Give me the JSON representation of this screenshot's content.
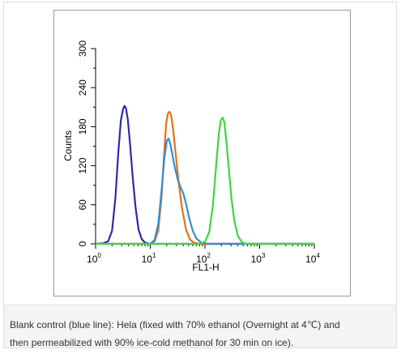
{
  "chart_data": {
    "type": "line",
    "title": "",
    "xlabel": "FL1-H",
    "ylabel": "Counts",
    "x_scale": "log",
    "xlim": [
      1,
      10000
    ],
    "ylim": [
      0,
      300
    ],
    "x_ticks": [
      {
        "base": "10",
        "exp": "0",
        "value": 1
      },
      {
        "base": "10",
        "exp": "1",
        "value": 10
      },
      {
        "base": "10",
        "exp": "2",
        "value": 100
      },
      {
        "base": "10",
        "exp": "3",
        "value": 1000
      },
      {
        "base": "10",
        "exp": "4",
        "value": 10000
      }
    ],
    "y_ticks": [
      "0",
      "60",
      "120",
      "180",
      "240",
      "300"
    ],
    "grid": false,
    "series": [
      {
        "color": "#2b2bb0",
        "points": [
          [
            1.0,
            0
          ],
          [
            1.4,
            1
          ],
          [
            1.7,
            4
          ],
          [
            2.0,
            20
          ],
          [
            2.3,
            70
          ],
          [
            2.6,
            140
          ],
          [
            2.9,
            190
          ],
          [
            3.2,
            208
          ],
          [
            3.4,
            212
          ],
          [
            3.6,
            208
          ],
          [
            3.9,
            190
          ],
          [
            4.3,
            150
          ],
          [
            4.8,
            100
          ],
          [
            5.4,
            55
          ],
          [
            6.1,
            22
          ],
          [
            7.0,
            7
          ],
          [
            8.0,
            2
          ],
          [
            9.5,
            0
          ],
          [
            20,
            0
          ],
          [
            100,
            0
          ],
          [
            1000,
            0
          ],
          [
            10000,
            0
          ]
        ]
      },
      {
        "color": "#e8701a",
        "points": [
          [
            1.0,
            0
          ],
          [
            10,
            0
          ],
          [
            12,
            4
          ],
          [
            14,
            20
          ],
          [
            16,
            70
          ],
          [
            18,
            140
          ],
          [
            19.5,
            185
          ],
          [
            21,
            200
          ],
          [
            22.5,
            203
          ],
          [
            24,
            198
          ],
          [
            26,
            178
          ],
          [
            29,
            140
          ],
          [
            33,
            95
          ],
          [
            38,
            55
          ],
          [
            45,
            22
          ],
          [
            53,
            7
          ],
          [
            62,
            2
          ],
          [
            80,
            0
          ],
          [
            1000,
            0
          ],
          [
            10000,
            0
          ]
        ]
      },
      {
        "color": "#2f8fd6",
        "points": [
          [
            1.0,
            0
          ],
          [
            10,
            0
          ],
          [
            12,
            6
          ],
          [
            14,
            30
          ],
          [
            16,
            80
          ],
          [
            18,
            130
          ],
          [
            20,
            158
          ],
          [
            21.5,
            162
          ],
          [
            23,
            155
          ],
          [
            25,
            140
          ],
          [
            28,
            118
          ],
          [
            32,
            98
          ],
          [
            36,
            86
          ],
          [
            40,
            78
          ],
          [
            45,
            62
          ],
          [
            52,
            38
          ],
          [
            60,
            20
          ],
          [
            70,
            8
          ],
          [
            85,
            2
          ],
          [
            110,
            0
          ],
          [
            1000,
            0
          ],
          [
            10000,
            0
          ]
        ]
      },
      {
        "color": "#3ed63e",
        "points": [
          [
            1.0,
            0
          ],
          [
            80,
            0
          ],
          [
            100,
            3
          ],
          [
            120,
            18
          ],
          [
            140,
            60
          ],
          [
            160,
            120
          ],
          [
            180,
            170
          ],
          [
            195,
            190
          ],
          [
            210,
            194
          ],
          [
            225,
            188
          ],
          [
            245,
            160
          ],
          [
            270,
            120
          ],
          [
            305,
            70
          ],
          [
            345,
            35
          ],
          [
            400,
            12
          ],
          [
            470,
            3
          ],
          [
            550,
            0
          ],
          [
            1000,
            0
          ],
          [
            10000,
            0
          ]
        ]
      }
    ]
  },
  "caption": {
    "line1": "Blank control (blue line): Hela (fixed with 70% ethanol (Overnight at 4℃) and",
    "line2": "then permeabilized with 90% ice-cold methanol for 30 min on ice)."
  }
}
